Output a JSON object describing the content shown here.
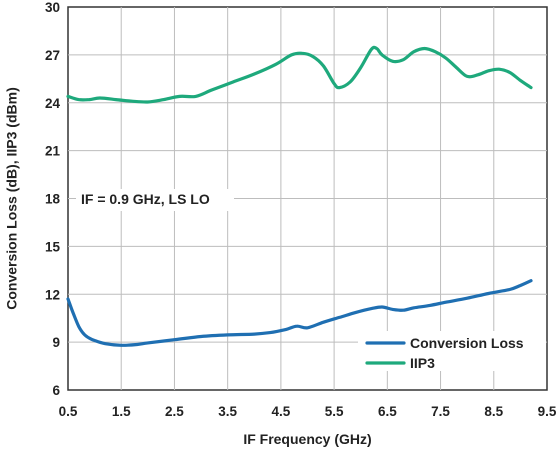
{
  "chart_data": {
    "type": "line",
    "xlabel": "IF Frequency (GHz)",
    "ylabel": "Conversion Loss (dB), IIP3 (dBm)",
    "xlim": [
      0.5,
      9.5
    ],
    "ylim": [
      6,
      30
    ],
    "xticks": [
      "0.5",
      "1.5",
      "2.5",
      "3.5",
      "4.5",
      "5.5",
      "6.5",
      "7.5",
      "8.5",
      "9.5"
    ],
    "yticks": [
      "6",
      "9",
      "12",
      "15",
      "18",
      "21",
      "24",
      "27",
      "30"
    ],
    "grid": true,
    "legend_position": "lower-right",
    "annotation": "IF = 0.9 GHz, LS LO",
    "series": [
      {
        "name": "Conversion Loss",
        "color": "#1f6fb2",
        "x": [
          0.5,
          0.6,
          0.7,
          0.8,
          0.9,
          1.0,
          1.2,
          1.5,
          1.8,
          2.0,
          2.5,
          3.0,
          3.5,
          4.0,
          4.3,
          4.6,
          4.8,
          5.0,
          5.3,
          5.6,
          5.9,
          6.2,
          6.4,
          6.6,
          6.8,
          7.0,
          7.3,
          7.6,
          8.0,
          8.4,
          8.8,
          9.0,
          9.2
        ],
        "y": [
          11.7,
          10.8,
          10.0,
          9.5,
          9.25,
          9.1,
          8.9,
          8.8,
          8.85,
          8.95,
          9.15,
          9.35,
          9.45,
          9.5,
          9.6,
          9.8,
          10.0,
          9.9,
          10.25,
          10.55,
          10.85,
          11.1,
          11.2,
          11.05,
          11.0,
          11.15,
          11.3,
          11.5,
          11.75,
          12.05,
          12.3,
          12.55,
          12.85
        ]
      },
      {
        "name": "IIP3",
        "color": "#1ea97c",
        "x": [
          0.5,
          0.7,
          0.9,
          1.1,
          1.4,
          1.7,
          2.0,
          2.3,
          2.6,
          2.9,
          3.2,
          3.6,
          4.0,
          4.4,
          4.7,
          4.9,
          5.1,
          5.3,
          5.5,
          5.6,
          5.8,
          6.0,
          6.2,
          6.3,
          6.4,
          6.6,
          6.8,
          7.0,
          7.2,
          7.4,
          7.6,
          7.8,
          8.0,
          8.2,
          8.4,
          8.6,
          8.8,
          9.0,
          9.2
        ],
        "y": [
          24.4,
          24.2,
          24.2,
          24.3,
          24.2,
          24.1,
          24.05,
          24.2,
          24.4,
          24.4,
          24.8,
          25.3,
          25.8,
          26.4,
          27.0,
          27.1,
          26.9,
          26.3,
          25.2,
          24.95,
          25.3,
          26.2,
          27.35,
          27.4,
          27.0,
          26.6,
          26.7,
          27.2,
          27.4,
          27.2,
          26.8,
          26.2,
          25.65,
          25.75,
          26.0,
          26.1,
          25.9,
          25.4,
          24.95
        ]
      }
    ]
  }
}
